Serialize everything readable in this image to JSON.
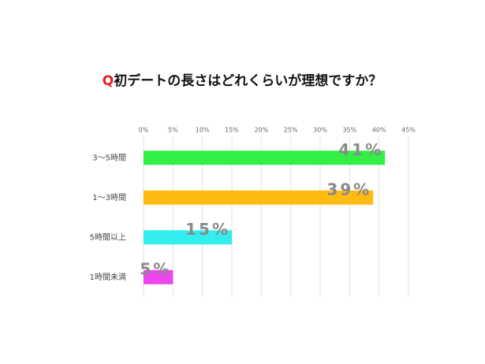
{
  "chart_data": {
    "type": "bar",
    "orientation": "horizontal",
    "title": {
      "marker": "Q",
      "text": "初デートの長さはどれくらいが理想ですか？"
    },
    "title_marker_color": "#e02020",
    "categories": [
      "3〜5時間",
      "1〜3時間",
      "5時間以上",
      "1時間未満"
    ],
    "values": [
      41,
      39,
      15,
      5
    ],
    "value_labels": [
      "41%",
      "39%",
      "15%",
      "5%"
    ],
    "colors": [
      "#33ee44",
      "#ffbb11",
      "#33eeee",
      "#ee44ee"
    ],
    "xlim": [
      0,
      45
    ],
    "xticks": [
      {
        "value": 0,
        "label": "0%"
      },
      {
        "value": 5,
        "label": "5%"
      },
      {
        "value": 10,
        "label": "10%"
      },
      {
        "value": 15,
        "label": "15%"
      },
      {
        "value": 20,
        "label": "20%"
      },
      {
        "value": 25,
        "label": "25%"
      },
      {
        "value": 30,
        "label": "30%"
      },
      {
        "value": 35,
        "label": "35%"
      },
      {
        "value": 40,
        "label": "40%"
      },
      {
        "value": 45,
        "label": "45%"
      }
    ],
    "grid": true
  }
}
